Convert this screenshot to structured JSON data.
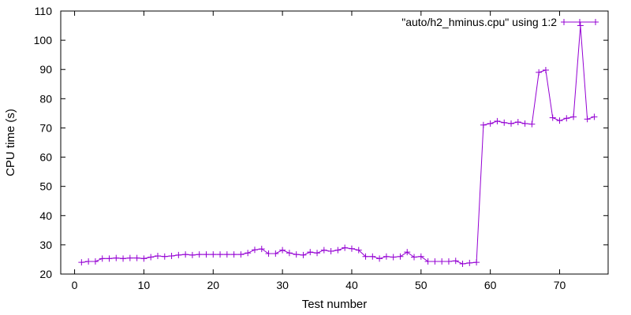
{
  "chart_data": {
    "type": "line",
    "xlabel": "Test number",
    "ylabel": "CPU time (s)",
    "xlim": [
      -2,
      77
    ],
    "ylim": [
      20,
      110
    ],
    "x_ticks": [
      0,
      10,
      20,
      30,
      40,
      50,
      60,
      70
    ],
    "y_ticks": [
      20,
      30,
      40,
      50,
      60,
      70,
      80,
      90,
      100,
      110
    ],
    "grid": false,
    "legend_position": "top-right",
    "series": [
      {
        "name": "\"auto/h2_hminus.cpu\" using 1:2",
        "color": "#9400d3",
        "marker": "plus",
        "x": [
          1,
          2,
          3,
          4,
          5,
          6,
          7,
          8,
          9,
          10,
          11,
          12,
          13,
          14,
          15,
          16,
          17,
          18,
          19,
          20,
          21,
          22,
          23,
          24,
          25,
          26,
          27,
          28,
          29,
          30,
          31,
          32,
          33,
          34,
          35,
          36,
          37,
          38,
          39,
          40,
          41,
          42,
          43,
          44,
          45,
          46,
          47,
          48,
          49,
          50,
          51,
          52,
          53,
          54,
          55,
          56,
          57,
          58,
          59,
          60,
          61,
          62,
          63,
          64,
          65,
          66,
          67,
          68,
          69,
          70,
          71,
          72,
          73,
          74,
          75
        ],
        "values": [
          24.0,
          24.3,
          24.3,
          25.3,
          25.3,
          25.5,
          25.3,
          25.5,
          25.5,
          25.3,
          25.8,
          26.2,
          26.0,
          26.2,
          26.5,
          26.7,
          26.5,
          26.7,
          26.7,
          26.7,
          26.7,
          26.7,
          26.7,
          26.7,
          27.2,
          28.3,
          28.6,
          27.0,
          27.0,
          28.2,
          27.2,
          26.7,
          26.5,
          27.5,
          27.2,
          28.2,
          27.8,
          28.2,
          29.0,
          28.7,
          28.2,
          26.0,
          26.0,
          25.3,
          26.0,
          25.8,
          26.0,
          27.5,
          25.8,
          26.0,
          24.3,
          24.3,
          24.3,
          24.3,
          24.5,
          23.5,
          23.8,
          24.0,
          71.0,
          71.5,
          72.3,
          71.8,
          71.5,
          72.0,
          71.5,
          71.3,
          89.0,
          89.8,
          73.5,
          72.5,
          73.3,
          73.8,
          105.0,
          73.0,
          73.8
        ]
      }
    ]
  }
}
